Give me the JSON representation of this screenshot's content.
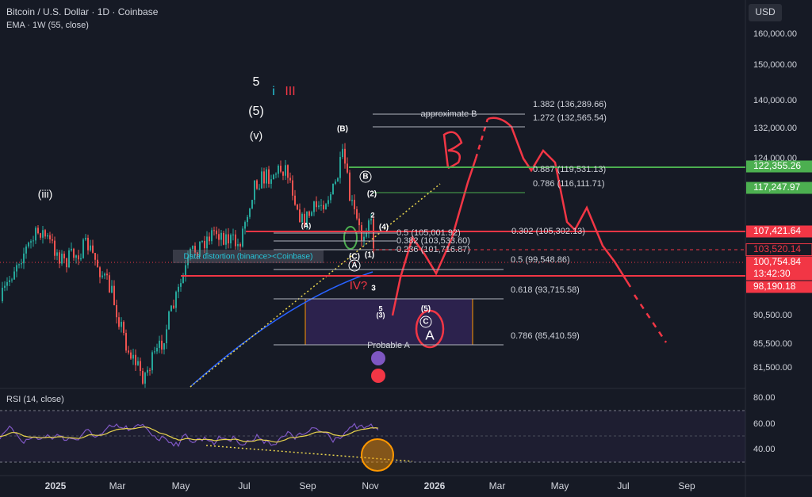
{
  "header": {
    "title": "Bitcoin / U.S. Dollar · 1D · Coinbase",
    "indicator": "EMA · 1W (55, close)"
  },
  "currency": "USD",
  "price_axis": [
    "160,000.00",
    "150,000.00",
    "140,000.00",
    "132,000.00",
    "124,000.00",
    "90,500.00",
    "85,500.00",
    "81,500.00"
  ],
  "price_tags": [
    {
      "label": "122,355.26",
      "color": "#4caf50"
    },
    {
      "label": "117,247.97",
      "color": "#4caf50"
    },
    {
      "label": "107,421.64",
      "color": "#f23645"
    },
    {
      "label": "103,520.14",
      "color": "#f23645"
    },
    {
      "label": "100,754.84",
      "color": "#f23645",
      "countdown": "13:42:30"
    },
    {
      "label": "98,190.18",
      "color": "#f23645"
    }
  ],
  "rsi": {
    "label": "RSI (14, close)",
    "axis": [
      "80.00",
      "60.00",
      "40.00"
    ]
  },
  "time_axis": [
    "2025",
    "Mar",
    "May",
    "Jul",
    "Sep",
    "Nov",
    "2026",
    "Mar",
    "May",
    "Jul",
    "Sep"
  ],
  "fib_levels": [
    "1.382 (136,289.66)",
    "1.272 (132,565.54)",
    "0.887 (119,531.13)",
    "0.786 (116,111.71)",
    "0.302 (105,302.13)",
    "0.5 (99,548.86)",
    "0.618 (93,715.58)",
    "0.786 (85,410.59)",
    "0.5 (105,001.92)",
    "0.382 (103,533.60)",
    "0.236 (101,716.87)"
  ],
  "annotations": [
    "approximate B",
    "Probable A",
    "Data distortion (binance><Coinbase)",
    "IV?"
  ],
  "wave_labels": [
    "5",
    "i",
    "III",
    "(5)",
    "(v)",
    "(iii)",
    "(B)",
    "B",
    "(2)",
    "2",
    "(4)",
    "(A)",
    "(C)",
    "A",
    "(1)",
    "3",
    "5",
    "(3)",
    "(5)",
    "C",
    "A"
  ]
}
